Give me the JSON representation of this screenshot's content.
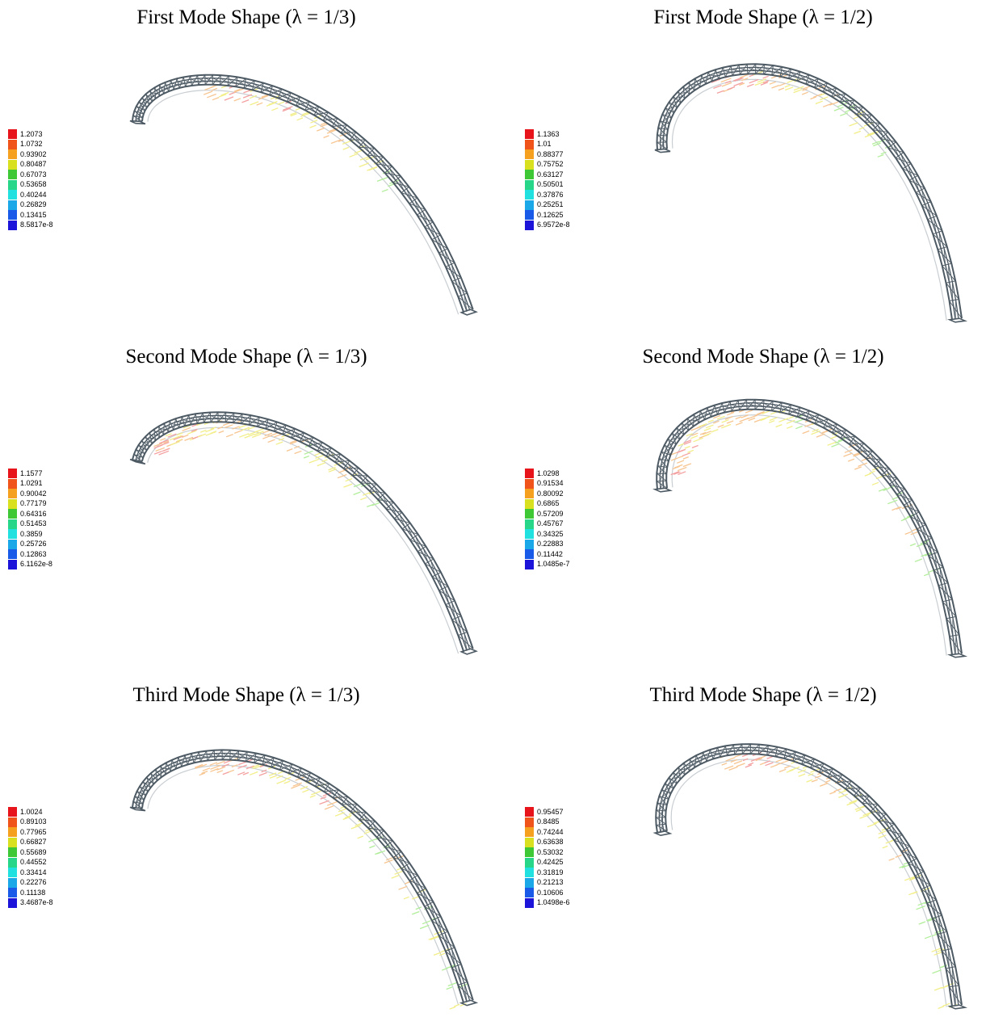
{
  "panels": [
    {
      "title": "First Mode Shape (λ = 1/3)",
      "legend": [
        "1.2073",
        "1.0732",
        "0.93902",
        "0.80487",
        "0.67073",
        "0.53658",
        "0.40244",
        "0.26829",
        "0.13415",
        "8.5817e-8"
      ]
    },
    {
      "title": "First Mode Shape (λ = 1/2)",
      "legend": [
        "1.1363",
        "1.01",
        "0.88377",
        "0.75752",
        "0.63127",
        "0.50501",
        "0.37876",
        "0.25251",
        "0.12625",
        "6.9572e-8"
      ]
    },
    {
      "title": "Second Mode Shape (λ = 1/3)",
      "legend": [
        "1.1577",
        "1.0291",
        "0.90042",
        "0.77179",
        "0.64316",
        "0.51453",
        "0.3859",
        "0.25726",
        "0.12863",
        "6.1162e-8"
      ]
    },
    {
      "title": "Second Mode Shape (λ = 1/2)",
      "legend": [
        "1.0298",
        "0.91534",
        "0.80092",
        "0.6865",
        "0.57209",
        "0.45767",
        "0.34325",
        "0.22883",
        "0.11442",
        "1.0485e-7"
      ]
    },
    {
      "title": "Third Mode Shape (λ = 1/3)",
      "legend": [
        "1.0024",
        "0.89103",
        "0.77965",
        "0.66827",
        "0.55689",
        "0.44552",
        "0.33414",
        "0.22276",
        "0.11138",
        "3.4687e-8"
      ]
    },
    {
      "title": "Third Mode Shape (λ = 1/2)",
      "legend": [
        "0.95457",
        "0.8485",
        "0.74244",
        "0.63638",
        "0.53032",
        "0.42425",
        "0.31819",
        "0.21213",
        "0.10606",
        "1.0498e-6"
      ]
    }
  ],
  "legend_colors": [
    "#e8141c",
    "#f0541a",
    "#f5a01e",
    "#d8e020",
    "#3ec836",
    "#28d68a",
    "#20e0e0",
    "#1aa8e8",
    "#1a5ae8",
    "#1c14d8"
  ],
  "structure_color": "#4d5a64",
  "arrow_colors": [
    "#f4a0a0",
    "#f7c590",
    "#f2ee88",
    "#b2ee9a",
    "#9ee6ea"
  ]
}
